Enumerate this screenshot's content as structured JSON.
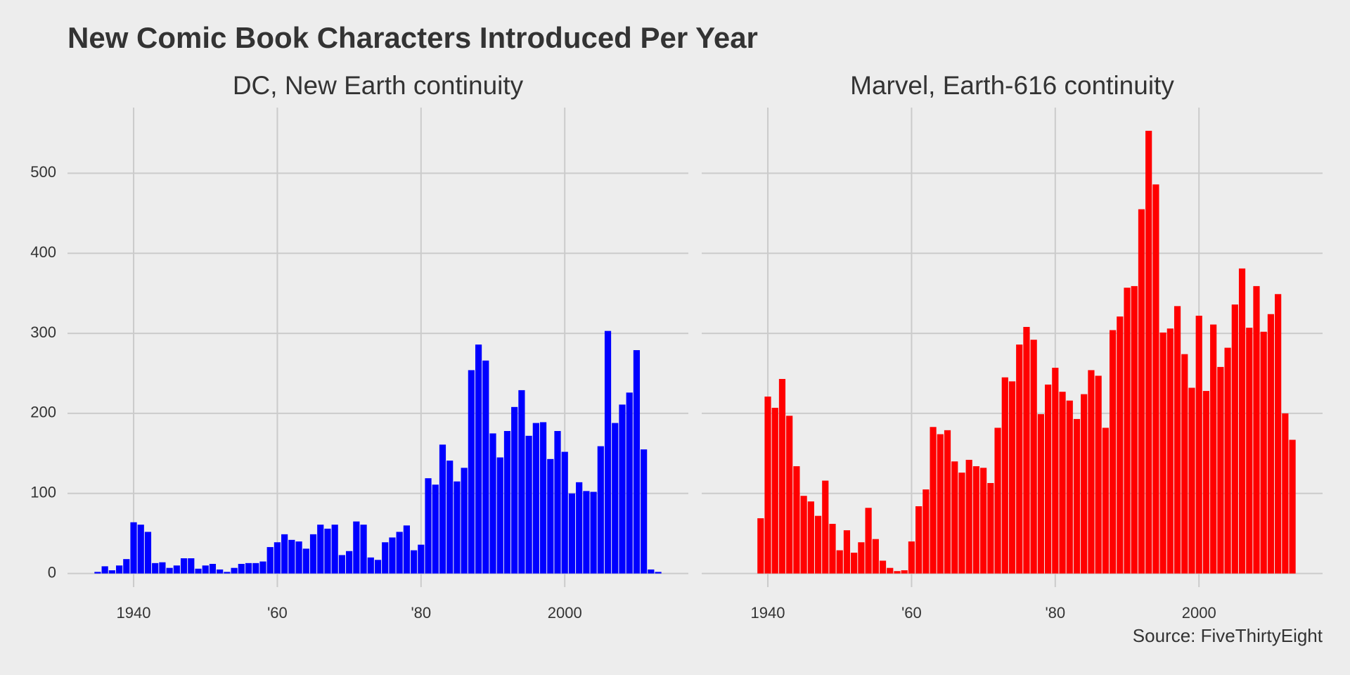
{
  "title": "New Comic Book Characters Introduced Per Year",
  "source": "Source: FiveThirtyEight",
  "chart_data": [
    {
      "type": "bar",
      "subtitle": "DC, New Earth continuity",
      "color": "#0000ff",
      "x": [
        1935,
        1936,
        1937,
        1938,
        1939,
        1940,
        1941,
        1942,
        1943,
        1944,
        1945,
        1946,
        1947,
        1948,
        1949,
        1950,
        1951,
        1952,
        1953,
        1954,
        1955,
        1956,
        1957,
        1958,
        1959,
        1960,
        1961,
        1962,
        1963,
        1964,
        1965,
        1966,
        1967,
        1968,
        1969,
        1970,
        1971,
        1972,
        1973,
        1974,
        1975,
        1976,
        1977,
        1978,
        1979,
        1980,
        1981,
        1982,
        1983,
        1984,
        1985,
        1986,
        1987,
        1988,
        1989,
        1990,
        1991,
        1992,
        1993,
        1994,
        1995,
        1996,
        1997,
        1998,
        1999,
        2000,
        2001,
        2002,
        2003,
        2004,
        2005,
        2006,
        2007,
        2008,
        2009,
        2010,
        2011,
        2012,
        2013
      ],
      "values": [
        2,
        9,
        4,
        10,
        18,
        64,
        61,
        52,
        13,
        14,
        7,
        10,
        19,
        19,
        6,
        10,
        12,
        5,
        2,
        7,
        12,
        13,
        13,
        15,
        33,
        39,
        49,
        42,
        40,
        31,
        49,
        61,
        56,
        61,
        23,
        28,
        65,
        61,
        20,
        17,
        39,
        45,
        52,
        60,
        29,
        36,
        119,
        111,
        161,
        141,
        115,
        132,
        254,
        286,
        266,
        175,
        145,
        178,
        208,
        229,
        172,
        188,
        189,
        143,
        178,
        152,
        100,
        114,
        103,
        102,
        159,
        303,
        188,
        211,
        226,
        279,
        155,
        5,
        2
      ],
      "xlim": [
        1930.8,
        2017.2
      ],
      "xticks": [
        1940,
        {
          "value": 1960,
          "label": "'60"
        },
        {
          "value": 1980,
          "label": "'80"
        },
        2000
      ],
      "ylim": [
        -17,
        582
      ],
      "yticks": [
        0,
        100,
        200,
        300,
        400,
        500
      ],
      "grid": true
    },
    {
      "type": "bar",
      "subtitle": "Marvel, Earth-616 continuity",
      "color": "#ff0000",
      "x": [
        1939,
        1940,
        1941,
        1942,
        1943,
        1944,
        1945,
        1946,
        1947,
        1948,
        1949,
        1950,
        1951,
        1952,
        1953,
        1954,
        1955,
        1956,
        1957,
        1958,
        1959,
        1960,
        1961,
        1962,
        1963,
        1964,
        1965,
        1966,
        1967,
        1968,
        1969,
        1970,
        1971,
        1972,
        1973,
        1974,
        1975,
        1976,
        1977,
        1978,
        1979,
        1980,
        1981,
        1982,
        1983,
        1984,
        1985,
        1986,
        1987,
        1988,
        1989,
        1990,
        1991,
        1992,
        1993,
        1994,
        1995,
        1996,
        1997,
        1998,
        1999,
        2000,
        2001,
        2002,
        2003,
        2004,
        2005,
        2006,
        2007,
        2008,
        2009,
        2010,
        2011,
        2012,
        2013
      ],
      "values": [
        69,
        221,
        207,
        243,
        197,
        134,
        97,
        90,
        72,
        116,
        62,
        29,
        54,
        26,
        39,
        82,
        43,
        16,
        7,
        3,
        4,
        40,
        84,
        105,
        183,
        174,
        179,
        140,
        126,
        142,
        134,
        132,
        113,
        182,
        245,
        240,
        286,
        308,
        292,
        199,
        236,
        257,
        227,
        216,
        193,
        224,
        254,
        247,
        182,
        304,
        321,
        357,
        359,
        455,
        553,
        486,
        301,
        306,
        334,
        274,
        232,
        322,
        228,
        311,
        258,
        282,
        336,
        381,
        307,
        359,
        302,
        324,
        349,
        200,
        167
      ],
      "xlim": [
        1930.8,
        2017.2
      ],
      "xticks": [
        1940,
        {
          "value": 1960,
          "label": "'60"
        },
        {
          "value": 1980,
          "label": "'80"
        },
        2000
      ],
      "ylim": [
        -17,
        582
      ],
      "yticks": [
        0,
        100,
        200,
        300,
        400,
        500
      ],
      "grid": true
    }
  ]
}
